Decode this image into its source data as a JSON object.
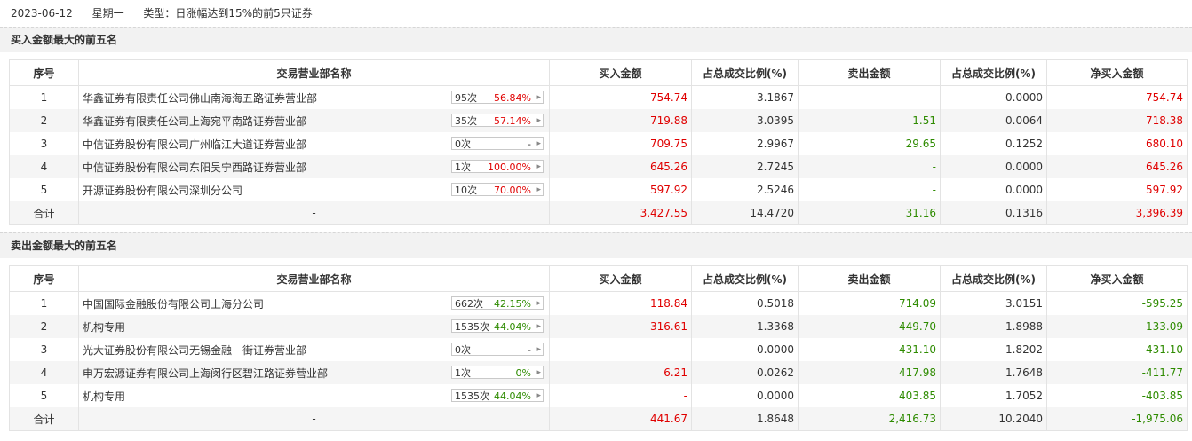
{
  "header": {
    "date": "2023-06-12",
    "weekday": "星期一",
    "type": "类型：日涨幅达到15%的前5只证券"
  },
  "columns": [
    "序号",
    "交易营业部名称",
    "买入金额",
    "占总成交比例(%)",
    "卖出金额",
    "占总成交比例(%)",
    "净买入金额"
  ],
  "buy_section": {
    "title": "买入金额最大的前五名",
    "rows": [
      {
        "idx": "1",
        "name": "华鑫证券有限责任公司佛山南海海五路证券营业部",
        "count": "95次",
        "pct": "56.84%",
        "pct_color": "red",
        "buy": "754.74",
        "buy_ratio": "3.1867",
        "sell": "-",
        "sell_ratio": "0.0000",
        "net": "754.74",
        "net_color": "red"
      },
      {
        "idx": "2",
        "name": "华鑫证券有限责任公司上海宛平南路证券营业部",
        "count": "35次",
        "pct": "57.14%",
        "pct_color": "red",
        "buy": "719.88",
        "buy_ratio": "3.0395",
        "sell": "1.51",
        "sell_ratio": "0.0064",
        "net": "718.38",
        "net_color": "red"
      },
      {
        "idx": "3",
        "name": "中信证券股份有限公司广州临江大道证券营业部",
        "count": "0次",
        "pct": "-",
        "pct_color": "gray",
        "buy": "709.75",
        "buy_ratio": "2.9967",
        "sell": "29.65",
        "sell_ratio": "0.1252",
        "net": "680.10",
        "net_color": "red"
      },
      {
        "idx": "4",
        "name": "中信证券股份有限公司东阳吴宁西路证券营业部",
        "count": "1次",
        "pct": "100.00%",
        "pct_color": "red",
        "buy": "645.26",
        "buy_ratio": "2.7245",
        "sell": "-",
        "sell_ratio": "0.0000",
        "net": "645.26",
        "net_color": "red"
      },
      {
        "idx": "5",
        "name": "开源证券股份有限公司深圳分公司",
        "count": "10次",
        "pct": "70.00%",
        "pct_color": "red",
        "buy": "597.92",
        "buy_ratio": "2.5246",
        "sell": "-",
        "sell_ratio": "0.0000",
        "net": "597.92",
        "net_color": "red"
      }
    ],
    "total": {
      "label": "合计",
      "name": "-",
      "buy": "3,427.55",
      "buy_ratio": "14.4720",
      "sell": "31.16",
      "sell_ratio": "0.1316",
      "net": "3,396.39",
      "net_color": "red"
    }
  },
  "sell_section": {
    "title": "卖出金额最大的前五名",
    "rows": [
      {
        "idx": "1",
        "name": "中国国际金融股份有限公司上海分公司",
        "count": "662次",
        "pct": "42.15%",
        "pct_color": "green",
        "buy": "118.84",
        "buy_ratio": "0.5018",
        "sell": "714.09",
        "sell_ratio": "3.0151",
        "net": "-595.25",
        "net_color": "green"
      },
      {
        "idx": "2",
        "name": "机构专用",
        "count": "1535次",
        "pct": "44.04%",
        "pct_color": "green",
        "buy": "316.61",
        "buy_ratio": "1.3368",
        "sell": "449.70",
        "sell_ratio": "1.8988",
        "net": "-133.09",
        "net_color": "green"
      },
      {
        "idx": "3",
        "name": "光大证券股份有限公司无锡金融一街证券营业部",
        "count": "0次",
        "pct": "-",
        "pct_color": "gray",
        "buy": "-",
        "buy_ratio": "0.0000",
        "sell": "431.10",
        "sell_ratio": "1.8202",
        "net": "-431.10",
        "net_color": "green"
      },
      {
        "idx": "4",
        "name": "申万宏源证券有限公司上海闵行区碧江路证券营业部",
        "count": "1次",
        "pct": "0%",
        "pct_color": "green",
        "buy": "6.21",
        "buy_ratio": "0.0262",
        "sell": "417.98",
        "sell_ratio": "1.7648",
        "net": "-411.77",
        "net_color": "green"
      },
      {
        "idx": "5",
        "name": "机构专用",
        "count": "1535次",
        "pct": "44.04%",
        "pct_color": "green",
        "buy": "-",
        "buy_ratio": "0.0000",
        "sell": "403.85",
        "sell_ratio": "1.7052",
        "net": "-403.85",
        "net_color": "green"
      }
    ],
    "total": {
      "label": "合计",
      "name": "-",
      "buy": "441.67",
      "buy_ratio": "1.8648",
      "sell": "2,416.73",
      "sell_ratio": "10.2040",
      "net": "-1,975.06",
      "net_color": "green"
    }
  },
  "colors": {
    "red": "#e00000",
    "green": "#2e8b00",
    "gray": "#333333"
  }
}
